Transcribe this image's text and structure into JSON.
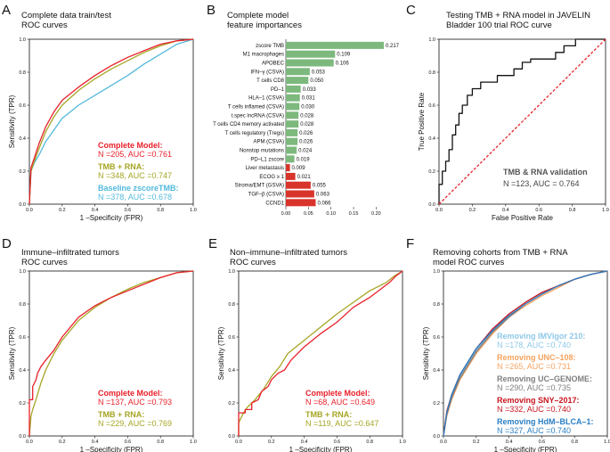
{
  "colors": {
    "complete": "#e8202a",
    "tmb": "#a5a524",
    "baseline": "#52b9dc",
    "pos_bar": "#7db97d",
    "neg_bar": "#d9342b",
    "diag": "#e8202a",
    "imvigor": "#8ec8e8",
    "unc": "#f5a35f",
    "ucgenome": "#7f7f7f",
    "sny": "#c8141e",
    "hdm": "#2a7fc4"
  },
  "chart_data": [
    {
      "id": "A",
      "panel_label": "A",
      "type": "line",
      "title": [
        "Complete data train/test",
        "ROC curves"
      ],
      "xlabel": "1 –Specificity (FPR)",
      "ylabel": "Sensitivity (TPR)",
      "xlim": [
        0,
        1
      ],
      "ylim": [
        0,
        1
      ],
      "ticks": [
        "0.0",
        "0.2",
        "0.4",
        "0.6",
        "0.8",
        "1.0"
      ],
      "legend": [
        {
          "name": "Complete Model:",
          "stats": "N =205, AUC =0.761",
          "color_key": "complete"
        },
        {
          "name": "TMB + RNA:",
          "stats": "N =348, AUC =0.747",
          "color_key": "tmb"
        },
        {
          "name": "Baseline zscoreTMB:",
          "stats": "N =378, AUC =0.678",
          "color_key": "baseline"
        }
      ],
      "series": [
        {
          "name": "Baseline zscoreTMB",
          "color_key": "baseline",
          "x": [
            0,
            0.01,
            0.03,
            0.06,
            0.1,
            0.15,
            0.2,
            0.3,
            0.4,
            0.5,
            0.6,
            0.7,
            0.8,
            0.9,
            1.0
          ],
          "y": [
            0,
            0.2,
            0.25,
            0.3,
            0.38,
            0.45,
            0.52,
            0.6,
            0.66,
            0.72,
            0.78,
            0.85,
            0.91,
            0.97,
            1.0
          ]
        },
        {
          "name": "TMB + RNA",
          "color_key": "tmb",
          "x": [
            0,
            0.01,
            0.03,
            0.06,
            0.1,
            0.15,
            0.2,
            0.3,
            0.4,
            0.5,
            0.6,
            0.7,
            0.8,
            0.9,
            1.0
          ],
          "y": [
            0,
            0.2,
            0.26,
            0.34,
            0.44,
            0.53,
            0.6,
            0.69,
            0.76,
            0.82,
            0.87,
            0.92,
            0.96,
            0.99,
            1.0
          ]
        },
        {
          "name": "Complete Model",
          "color_key": "complete",
          "x": [
            0,
            0.01,
            0.03,
            0.06,
            0.1,
            0.15,
            0.2,
            0.3,
            0.4,
            0.5,
            0.6,
            0.7,
            0.8,
            0.9,
            1.0
          ],
          "y": [
            0,
            0.22,
            0.28,
            0.37,
            0.47,
            0.56,
            0.63,
            0.71,
            0.78,
            0.84,
            0.89,
            0.93,
            0.97,
            0.99,
            1.0
          ]
        }
      ]
    },
    {
      "id": "B",
      "panel_label": "B",
      "type": "bar",
      "title": [
        "Complete model",
        "feature importances"
      ],
      "categories": [
        "zscore TMB",
        "M1 macrophages",
        "APOBEC",
        "IFN–γ (CSVA)",
        "T cells CD8",
        "PD–1",
        "HLA–1 (CSVA)",
        "T cells inflamed (CSVA)",
        "t.spec lncRNA (CSVA)",
        "T cells CD4 memory activated",
        "T cells regulatory (Tregs)",
        "APM (CSVA)",
        "Nonstop mutations",
        "PD–L1 zscore",
        "Liver metastasis",
        "ECOG ≥ 1",
        "Stroma/EMT (GSVA)",
        "TGF–β (CSVA)",
        "CCND1"
      ],
      "values": [
        0.217,
        0.109,
        0.106,
        0.053,
        0.05,
        0.033,
        0.031,
        0.03,
        0.028,
        0.028,
        0.026,
        0.026,
        0.024,
        0.019,
        0.009,
        0.021,
        0.055,
        0.063,
        0.066
      ],
      "value_labels": [
        "0.217",
        "0.109",
        "0.106",
        "0.053",
        "0.050",
        "0.033",
        "0.031",
        "0.030",
        "0.028",
        "0.028",
        "0.026",
        "0.026",
        "0.024",
        "0.019",
        "0.009",
        "0.021",
        "0.055",
        "0.063",
        "0.066"
      ],
      "direction": [
        "pos",
        "pos",
        "pos",
        "pos",
        "pos",
        "pos",
        "pos",
        "pos",
        "pos",
        "pos",
        "pos",
        "pos",
        "pos",
        "pos",
        "neg",
        "neg",
        "neg",
        "neg",
        "neg"
      ],
      "xlim": [
        0,
        0.217
      ],
      "ticks": [
        "0.00",
        "0.05",
        "0.10",
        "0.15",
        "0.20"
      ]
    },
    {
      "id": "C",
      "panel_label": "C",
      "type": "line",
      "title": [
        "Testing TMB + RNA model in JAVELIN",
        "Bladder 100 trial ROC curve"
      ],
      "xlabel": "False Positive Rate",
      "ylabel": "True Positive Rate",
      "xlim": [
        0,
        1
      ],
      "ylim": [
        0,
        1
      ],
      "ticks": [
        "0.0",
        "0.2",
        "0.4",
        "0.6",
        "0.8",
        "1.0"
      ],
      "legend": [
        {
          "name": "TMB & RNA validation",
          "stats": "N =123, AUC = 0.764",
          "color_key": "ucgenome"
        }
      ],
      "series": [
        {
          "name": "TMB & RNA validation",
          "color_key": "black",
          "x": [
            0,
            0,
            0.02,
            0.02,
            0.04,
            0.04,
            0.06,
            0.06,
            0.08,
            0.08,
            0.1,
            0.1,
            0.12,
            0.12,
            0.14,
            0.14,
            0.17,
            0.17,
            0.2,
            0.2,
            0.25,
            0.25,
            0.35,
            0.35,
            0.45,
            0.45,
            0.5,
            0.5,
            0.55,
            0.55,
            0.7,
            0.7,
            0.75,
            0.75,
            0.82,
            0.82,
            1.0
          ],
          "y": [
            0,
            0.12,
            0.12,
            0.2,
            0.2,
            0.26,
            0.26,
            0.33,
            0.33,
            0.42,
            0.42,
            0.48,
            0.48,
            0.55,
            0.55,
            0.6,
            0.6,
            0.66,
            0.66,
            0.7,
            0.7,
            0.74,
            0.74,
            0.78,
            0.78,
            0.82,
            0.82,
            0.86,
            0.86,
            0.88,
            0.88,
            0.92,
            0.92,
            0.96,
            0.96,
            1.0,
            1.0
          ]
        },
        {
          "name": "chance",
          "color_key": "diag",
          "dashed": true,
          "x": [
            0,
            1
          ],
          "y": [
            0,
            1
          ]
        }
      ]
    },
    {
      "id": "D",
      "panel_label": "D",
      "type": "line",
      "title": [
        "Immune–infiltrated tumors",
        "ROC curves"
      ],
      "xlabel": "1 –Specificity (FPR)",
      "ylabel": "Sensitivity (TPR)",
      "xlim": [
        0,
        1
      ],
      "ylim": [
        0,
        1
      ],
      "ticks": [
        "0.0",
        "0.2",
        "0.4",
        "0.6",
        "0.8",
        "1.0"
      ],
      "legend": [
        {
          "name": "Complete Model:",
          "stats": "N =137, AUC =0.793",
          "color_key": "complete"
        },
        {
          "name": "TMB + RNA:",
          "stats": "N =229, AUC =0.769",
          "color_key": "tmb"
        }
      ],
      "series": [
        {
          "name": "TMB + RNA",
          "color_key": "tmb",
          "x": [
            0,
            0.01,
            0.02,
            0.04,
            0.07,
            0.1,
            0.15,
            0.2,
            0.3,
            0.4,
            0.5,
            0.6,
            0.7,
            0.8,
            0.9,
            1.0
          ],
          "y": [
            0,
            0.12,
            0.16,
            0.22,
            0.32,
            0.4,
            0.5,
            0.58,
            0.7,
            0.78,
            0.84,
            0.89,
            0.93,
            0.96,
            0.99,
            1.0
          ]
        },
        {
          "name": "Complete Model",
          "color_key": "complete",
          "x": [
            0,
            0.0,
            0.02,
            0.02,
            0.04,
            0.05,
            0.07,
            0.1,
            0.15,
            0.2,
            0.3,
            0.4,
            0.5,
            0.6,
            0.7,
            0.8,
            0.9,
            1.0
          ],
          "y": [
            0,
            0.22,
            0.22,
            0.3,
            0.34,
            0.38,
            0.42,
            0.46,
            0.52,
            0.6,
            0.72,
            0.79,
            0.84,
            0.88,
            0.92,
            0.96,
            0.99,
            1.0
          ]
        }
      ]
    },
    {
      "id": "E",
      "panel_label": "E",
      "type": "line",
      "title": [
        "Non–immune–infiltrated tumors",
        "ROC curves"
      ],
      "xlabel": "1 –Specificity (FPR)",
      "ylabel": "Sensitivity (TPR)",
      "xlim": [
        0,
        1
      ],
      "ylim": [
        0,
        1
      ],
      "ticks": [
        "0.0",
        "0.2",
        "0.4",
        "0.6",
        "0.8",
        "1.0"
      ],
      "legend": [
        {
          "name": "Complete Model:",
          "stats": "N =68, AUC =0.649",
          "color_key": "complete"
        },
        {
          "name": "TMB + RNA:",
          "stats": "N =119, AUC =0.647",
          "color_key": "tmb"
        }
      ],
      "series": [
        {
          "name": "TMB + RNA",
          "color_key": "tmb",
          "x": [
            0,
            0,
            0.03,
            0.05,
            0.08,
            0.1,
            0.15,
            0.2,
            0.25,
            0.3,
            0.4,
            0.5,
            0.6,
            0.7,
            0.8,
            0.9,
            0.95,
            1.0
          ],
          "y": [
            0,
            0.08,
            0.14,
            0.17,
            0.2,
            0.22,
            0.28,
            0.36,
            0.42,
            0.5,
            0.58,
            0.66,
            0.74,
            0.81,
            0.88,
            0.93,
            0.97,
            1.0
          ]
        },
        {
          "name": "Complete Model",
          "color_key": "complete",
          "x": [
            0,
            0,
            0.04,
            0.04,
            0.08,
            0.08,
            0.12,
            0.14,
            0.18,
            0.2,
            0.24,
            0.28,
            0.32,
            0.4,
            0.5,
            0.6,
            0.7,
            0.8,
            0.88,
            0.92,
            0.96,
            1.0
          ],
          "y": [
            0,
            0.14,
            0.14,
            0.16,
            0.16,
            0.2,
            0.22,
            0.27,
            0.3,
            0.34,
            0.38,
            0.4,
            0.46,
            0.54,
            0.62,
            0.69,
            0.78,
            0.84,
            0.9,
            0.93,
            0.97,
            1.0
          ]
        }
      ]
    },
    {
      "id": "F",
      "panel_label": "F",
      "type": "line",
      "title": [
        "Removing cohorts from TMB + RNA",
        "model ROC curves"
      ],
      "xlabel": "1 –Specificity (FPR)",
      "ylabel": "Sensitivity (TPR)",
      "xlim": [
        0,
        1
      ],
      "ylim": [
        0,
        1
      ],
      "ticks": [
        "0.0",
        "0.2",
        "0.4",
        "0.6",
        "0.8",
        "1.0"
      ],
      "legend": [
        {
          "name": "Removing IMVigor 210:",
          "stats": "N =178, AUC =0.740",
          "color_key": "imvigor"
        },
        {
          "name": "Removing UNC–108:",
          "stats": "N =265, AUC =0.731",
          "color_key": "unc"
        },
        {
          "name": "Removing UC–GENOME:",
          "stats": "N =290, AUC =0.735",
          "color_key": "ucgenome"
        },
        {
          "name": "Removing SNY–2017:",
          "stats": "N =332, AUC =0.740",
          "color_key": "sny"
        },
        {
          "name": "Removing HdM–BLCA–1:",
          "stats": "N =327, AUC =0.740",
          "color_key": "hdm"
        }
      ],
      "series": [
        {
          "name": "IMVigor 210",
          "color_key": "imvigor",
          "x": [
            0,
            0.02,
            0.05,
            0.1,
            0.2,
            0.3,
            0.4,
            0.5,
            0.6,
            0.7,
            0.8,
            0.9,
            1.0
          ],
          "y": [
            0,
            0.14,
            0.24,
            0.36,
            0.52,
            0.64,
            0.73,
            0.8,
            0.86,
            0.91,
            0.95,
            0.98,
            1.0
          ]
        },
        {
          "name": "UNC-108",
          "color_key": "unc",
          "x": [
            0,
            0.02,
            0.05,
            0.1,
            0.2,
            0.3,
            0.4,
            0.5,
            0.6,
            0.7,
            0.8,
            0.9,
            1.0
          ],
          "y": [
            0,
            0.12,
            0.22,
            0.34,
            0.5,
            0.62,
            0.72,
            0.79,
            0.85,
            0.9,
            0.95,
            0.98,
            1.0
          ]
        },
        {
          "name": "UC-GENOME",
          "color_key": "ucgenome",
          "x": [
            0,
            0.02,
            0.05,
            0.1,
            0.2,
            0.3,
            0.4,
            0.5,
            0.6,
            0.7,
            0.8,
            0.9,
            1.0
          ],
          "y": [
            0,
            0.13,
            0.23,
            0.35,
            0.51,
            0.63,
            0.72,
            0.8,
            0.86,
            0.91,
            0.95,
            0.98,
            1.0
          ]
        },
        {
          "name": "SNY-2017",
          "color_key": "sny",
          "x": [
            0,
            0.02,
            0.05,
            0.1,
            0.2,
            0.3,
            0.4,
            0.5,
            0.6,
            0.7,
            0.8,
            0.9,
            1.0
          ],
          "y": [
            0,
            0.15,
            0.25,
            0.37,
            0.53,
            0.65,
            0.74,
            0.81,
            0.87,
            0.91,
            0.95,
            0.98,
            1.0
          ]
        },
        {
          "name": "HdM-BLCA-1",
          "color_key": "hdm",
          "x": [
            0,
            0.02,
            0.05,
            0.1,
            0.2,
            0.3,
            0.4,
            0.5,
            0.6,
            0.7,
            0.8,
            0.9,
            1.0
          ],
          "y": [
            0,
            0.14,
            0.25,
            0.37,
            0.53,
            0.64,
            0.73,
            0.8,
            0.86,
            0.91,
            0.95,
            0.98,
            1.0
          ]
        }
      ]
    }
  ]
}
